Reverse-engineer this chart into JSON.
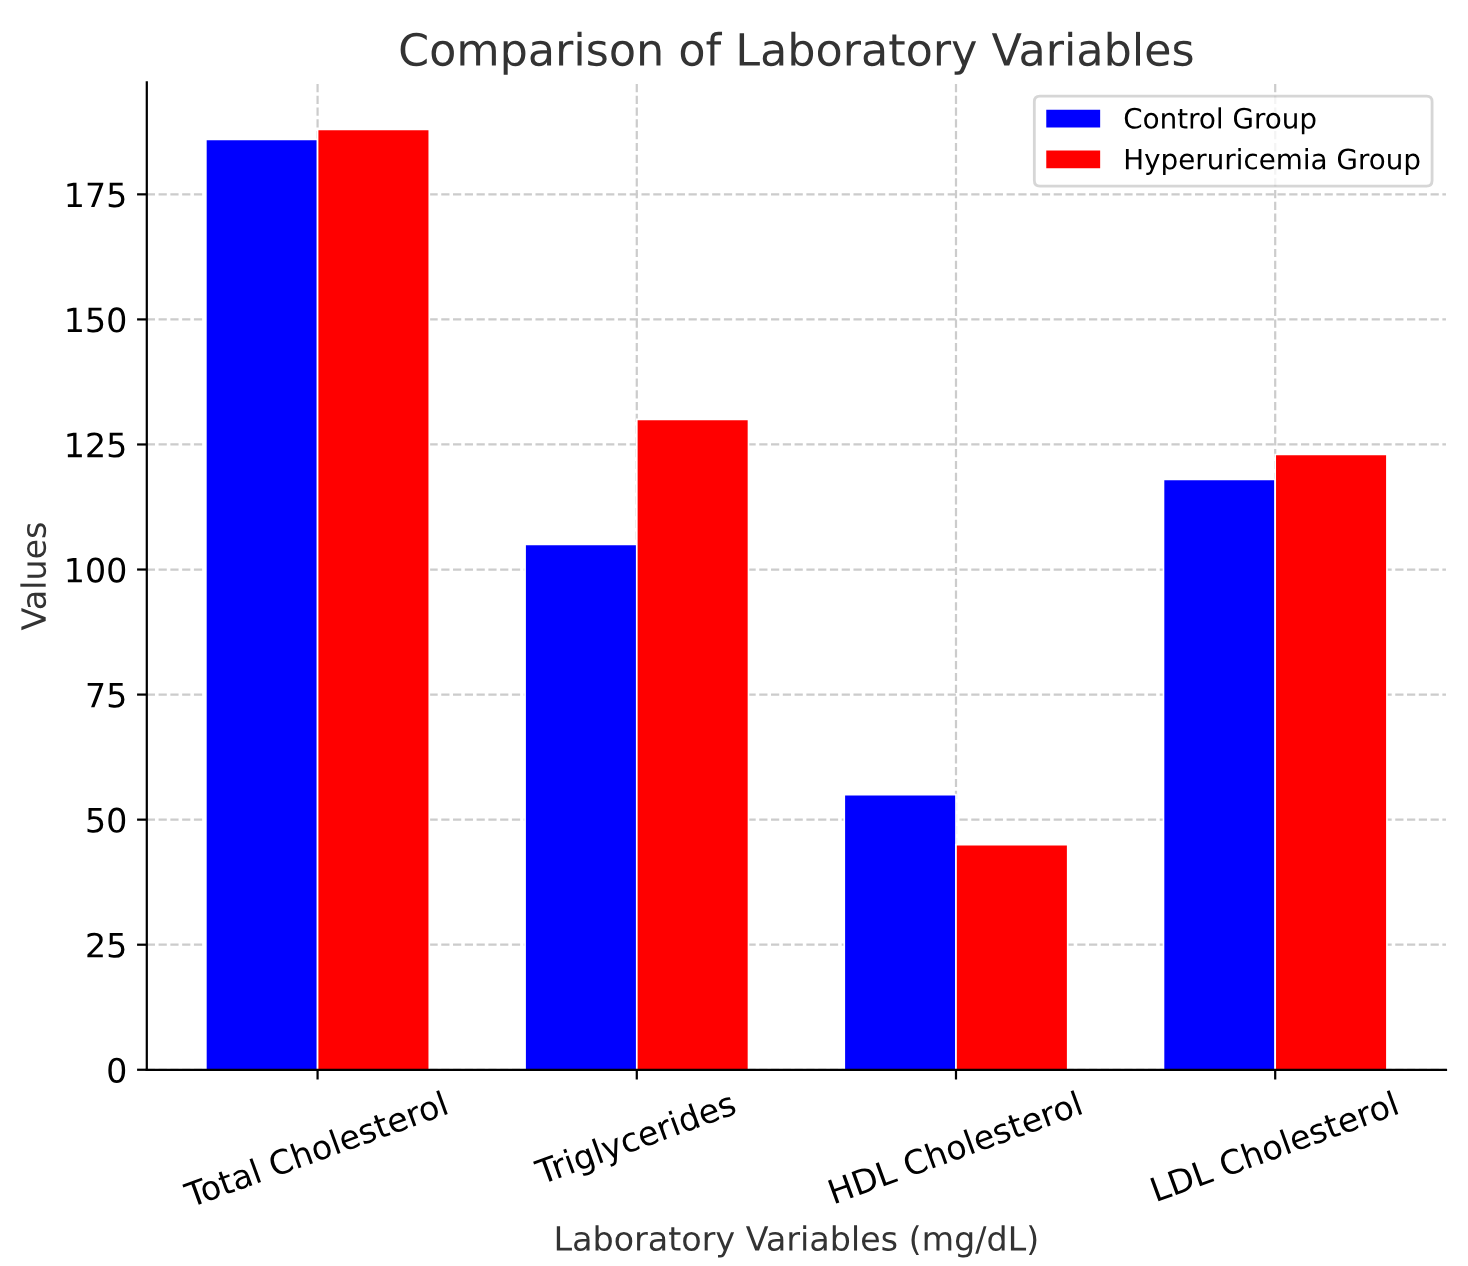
{
  "chart_data": {
    "type": "bar",
    "title": "Comparison of Laboratory Variables",
    "xlabel": "Laboratory Variables (mg/dL)",
    "ylabel": "Values",
    "categories": [
      "Total Cholesterol",
      "Triglycerides",
      "HDL Cholesterol",
      "LDL Cholesterol"
    ],
    "series": [
      {
        "name": "Control Group",
        "color": "#0000ff",
        "values": [
          186,
          105,
          55,
          118
        ]
      },
      {
        "name": "Hyperuricemia Group",
        "color": "#ff0000",
        "values": [
          188,
          130,
          45,
          123
        ]
      }
    ],
    "ylim": [
      0,
      197.4
    ],
    "yticks": [
      0,
      25,
      50,
      75,
      100,
      125,
      150,
      175
    ],
    "grid": true,
    "legend": "top right"
  }
}
